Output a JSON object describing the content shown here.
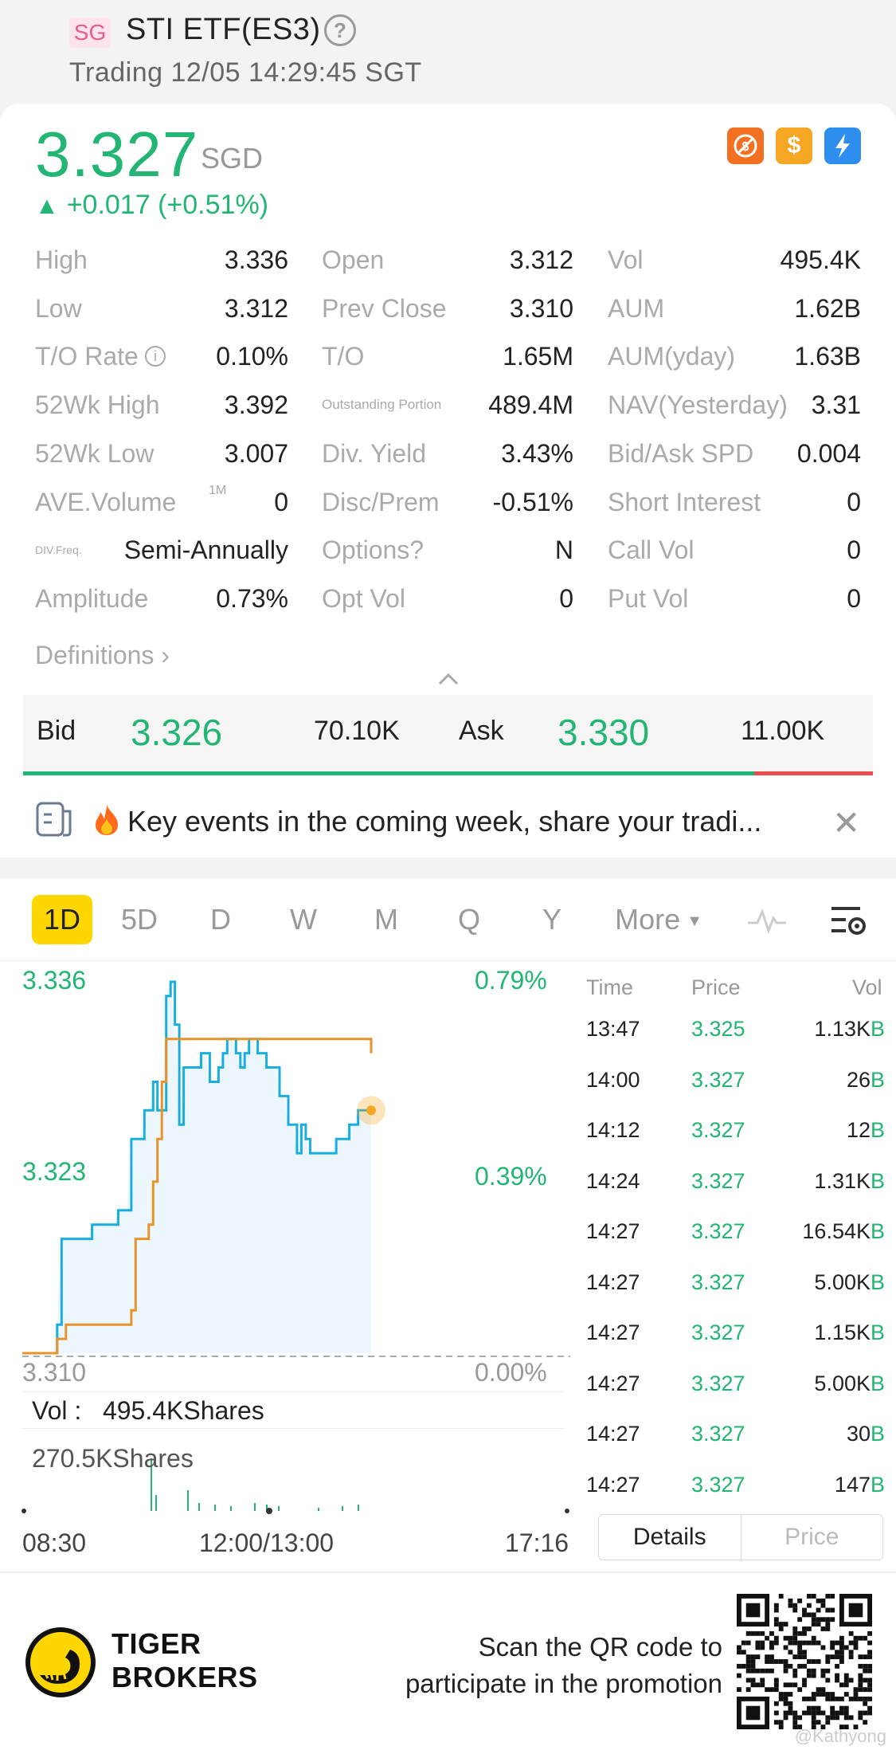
{
  "header": {
    "market_badge": "SG",
    "title": "STI ETF(ES3)",
    "status": "Trading 12/05 14:29:45 SGT",
    "help_icon": "question-circle-icon"
  },
  "quote": {
    "price": "3.327",
    "currency": "SGD",
    "change": "+0.017 (+0.51%)",
    "direction": "up",
    "accent_color": "#22b573",
    "badges": [
      "no-margin-icon",
      "dollar-icon",
      "lightning-icon"
    ]
  },
  "stats": {
    "col1": [
      {
        "label": "High",
        "value": "3.336"
      },
      {
        "label": "Low",
        "value": "3.312"
      },
      {
        "label": "T/O Rate",
        "value": "0.10%"
      },
      {
        "label": "52Wk High",
        "value": "3.392"
      },
      {
        "label": "52Wk Low",
        "value": "3.007"
      },
      {
        "label": "AVE.Volume",
        "sup": "1M",
        "value": "0"
      },
      {
        "label": "DIV.Freq.",
        "value": "Semi-Annually"
      },
      {
        "label": "Amplitude",
        "value": "0.73%"
      }
    ],
    "col2": [
      {
        "label": "Open",
        "value": "3.312"
      },
      {
        "label": "Prev Close",
        "value": "3.310"
      },
      {
        "label": "T/O",
        "value": "1.65M"
      },
      {
        "label": "Outstanding Portion",
        "value": "489.4M"
      },
      {
        "label": "Div. Yield",
        "value": "3.43%"
      },
      {
        "label": "Disc/Prem",
        "value": "-0.51%"
      },
      {
        "label": "Options?",
        "value": "N"
      },
      {
        "label": "Opt Vol",
        "value": "0"
      }
    ],
    "col3": [
      {
        "label": "Vol",
        "value": "495.4K"
      },
      {
        "label": "AUM",
        "value": "1.62B"
      },
      {
        "label": "AUM(yday)",
        "value": "1.63B"
      },
      {
        "label": "NAV(Yesterday)",
        "value": "3.31"
      },
      {
        "label": "Bid/Ask SPD",
        "value": "0.004"
      },
      {
        "label": "Short Interest",
        "value": "0"
      },
      {
        "label": "Call Vol",
        "value": "0"
      },
      {
        "label": "Put Vol",
        "value": "0"
      }
    ],
    "definitions_label": "Definitions"
  },
  "bid_ask": {
    "bid_label": "Bid",
    "bid_price": "3.326",
    "bid_qty": "70.10K",
    "ask_label": "Ask",
    "ask_price": "3.330",
    "ask_qty": "11.00K",
    "bid_ratio": 0.86
  },
  "banner": {
    "text": "Key events in the coming week, share your tradi...",
    "icon": "fire-icon"
  },
  "chart_tabs": [
    "1D",
    "5D",
    "D",
    "W",
    "M",
    "Q",
    "Y",
    "More"
  ],
  "active_tab": "1D",
  "chart_data": {
    "type": "line",
    "y_left_ticks": [
      "3.336",
      "3.323",
      "3.310"
    ],
    "y_right_ticks": [
      "0.79%",
      "0.39%",
      "0.00%"
    ],
    "x_ticks": [
      "08:30",
      "12:00/13:00",
      "17:16"
    ],
    "ylim": [
      3.31,
      3.336
    ],
    "prev_close": 3.31,
    "series": [
      {
        "color": "#1aaee0",
        "values": [
          3.31,
          3.31,
          3.31,
          3.31,
          3.31,
          3.31,
          3.31,
          3.31,
          3.312,
          3.318,
          3.318,
          3.318,
          3.318,
          3.318,
          3.318,
          3.318,
          3.319,
          3.319,
          3.319,
          3.319,
          3.319,
          3.319,
          3.32,
          3.32,
          3.32,
          3.325,
          3.325,
          3.325,
          3.327,
          3.327,
          3.329,
          3.327,
          3.327,
          3.335,
          3.336,
          3.333,
          3.326,
          3.33,
          3.33,
          3.33,
          3.33,
          3.331,
          3.331,
          3.329,
          3.329,
          3.33,
          3.331,
          3.332,
          3.332,
          3.331,
          3.33,
          3.331,
          3.332,
          3.332,
          3.331,
          3.331,
          3.33,
          3.33,
          3.33,
          3.328,
          3.328,
          3.326,
          3.326,
          3.324,
          3.326,
          3.325,
          3.324,
          3.324,
          3.324,
          3.324,
          3.324,
          3.324,
          3.325,
          3.325,
          3.325,
          3.326,
          3.326,
          3.327,
          3.327,
          3.327,
          3.327
        ]
      },
      {
        "color": "#e8922a",
        "values": [
          3.31,
          3.31,
          3.31,
          3.31,
          3.31,
          3.31,
          3.31,
          3.31,
          3.311,
          3.311,
          3.312,
          3.312,
          3.312,
          3.312,
          3.312,
          3.312,
          3.312,
          3.312,
          3.312,
          3.312,
          3.312,
          3.312,
          3.312,
          3.312,
          3.312,
          3.313,
          3.318,
          3.318,
          3.318,
          3.319,
          3.322,
          3.325,
          3.329,
          3.332,
          3.332,
          3.332,
          3.332,
          3.332,
          3.332,
          3.332,
          3.332,
          3.332,
          3.332,
          3.332,
          3.332,
          3.332,
          3.332,
          3.332,
          3.332,
          3.332,
          3.332,
          3.332,
          3.332,
          3.332,
          3.332,
          3.332,
          3.332,
          3.332,
          3.332,
          3.332,
          3.332,
          3.332,
          3.332,
          3.332,
          3.332,
          3.332,
          3.332,
          3.332,
          3.332,
          3.332,
          3.332,
          3.332,
          3.332,
          3.332,
          3.332,
          3.332,
          3.332,
          3.332,
          3.332,
          3.332,
          3.331
        ]
      }
    ],
    "volume_label": "Vol :",
    "volume_value": "495.4KShares",
    "volume_axis_max": "270.5KShares"
  },
  "trades": {
    "headers": [
      "Time",
      "Price",
      "Vol"
    ],
    "rows": [
      {
        "time": "13:47",
        "price": "3.325",
        "vol": "1.13K",
        "side": "B"
      },
      {
        "time": "14:00",
        "price": "3.327",
        "vol": "26",
        "side": "B"
      },
      {
        "time": "14:12",
        "price": "3.327",
        "vol": "12",
        "side": "B"
      },
      {
        "time": "14:24",
        "price": "3.327",
        "vol": "1.31K",
        "side": "B"
      },
      {
        "time": "14:27",
        "price": "3.327",
        "vol": "16.54K",
        "side": "B"
      },
      {
        "time": "14:27",
        "price": "3.327",
        "vol": "5.00K",
        "side": "B"
      },
      {
        "time": "14:27",
        "price": "3.327",
        "vol": "1.15K",
        "side": "B"
      },
      {
        "time": "14:27",
        "price": "3.327",
        "vol": "5.00K",
        "side": "B"
      },
      {
        "time": "14:27",
        "price": "3.327",
        "vol": "30",
        "side": "B"
      },
      {
        "time": "14:27",
        "price": "3.327",
        "vol": "147",
        "side": "B"
      }
    ],
    "seg_details": "Details",
    "seg_price": "Price"
  },
  "footer": {
    "brand_line1": "TIGER",
    "brand_line2": "BROKERS",
    "promo_line1": "Scan the QR code to",
    "promo_line2": "participate in the promotion",
    "watermark": "@Kathyong"
  }
}
